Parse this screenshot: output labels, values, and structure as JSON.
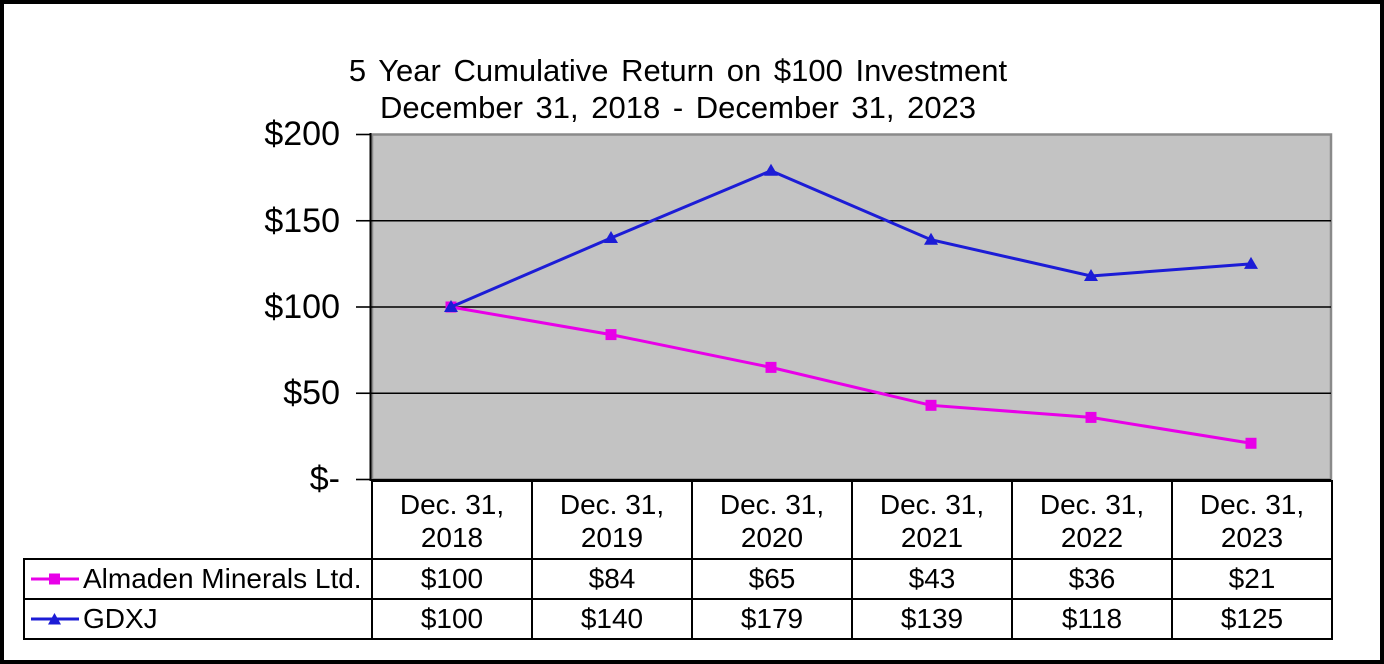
{
  "title": {
    "line1": "5 Year Cumulative Return on $100 Investment",
    "line2": "December 31, 2018 - December 31, 2023"
  },
  "y_axis_labels": [
    "$200",
    "$150",
    "$100",
    "$50",
    "$-"
  ],
  "chart_data": {
    "type": "line",
    "title": "5 Year Cumulative Return on $100 Investment",
    "subtitle": "December 31, 2018 - December 31, 2023",
    "categories": [
      "Dec. 31, 2018",
      "Dec. 31, 2019",
      "Dec. 31, 2020",
      "Dec. 31, 2021",
      "Dec. 31, 2022",
      "Dec. 31, 2023"
    ],
    "series": [
      {
        "name": "Almaden Minerals Ltd.",
        "values": [
          100,
          84,
          65,
          43,
          36,
          21
        ],
        "display_values": [
          "$100",
          "$84",
          "$65",
          "$43",
          "$36",
          "$21"
        ],
        "color": "#E800E8",
        "marker": "square"
      },
      {
        "name": "GDXJ",
        "values": [
          100,
          140,
          179,
          139,
          118,
          125
        ],
        "display_values": [
          "$100",
          "$140",
          "$179",
          "$139",
          "$118",
          "$125"
        ],
        "color": "#1C1CD6",
        "marker": "triangle"
      }
    ],
    "ylim": [
      0,
      200
    ],
    "y_tick_values": [
      0,
      50,
      100,
      150,
      200
    ],
    "y_gridline_values": [
      50,
      100,
      150
    ],
    "plot_background": "#C3C3C3",
    "plot_border_color": "#8A8A8A",
    "axis_color": "#000000",
    "grid": true,
    "legend_position": "data-table-left"
  },
  "table": {
    "headers": [
      {
        "line1": "Dec. 31,",
        "line2": "2018"
      },
      {
        "line1": "Dec. 31,",
        "line2": "2019"
      },
      {
        "line1": "Dec. 31,",
        "line2": "2020"
      },
      {
        "line1": "Dec. 31,",
        "line2": "2021"
      },
      {
        "line1": "Dec. 31,",
        "line2": "2022"
      },
      {
        "line1": "Dec. 31,",
        "line2": "2023"
      }
    ]
  }
}
